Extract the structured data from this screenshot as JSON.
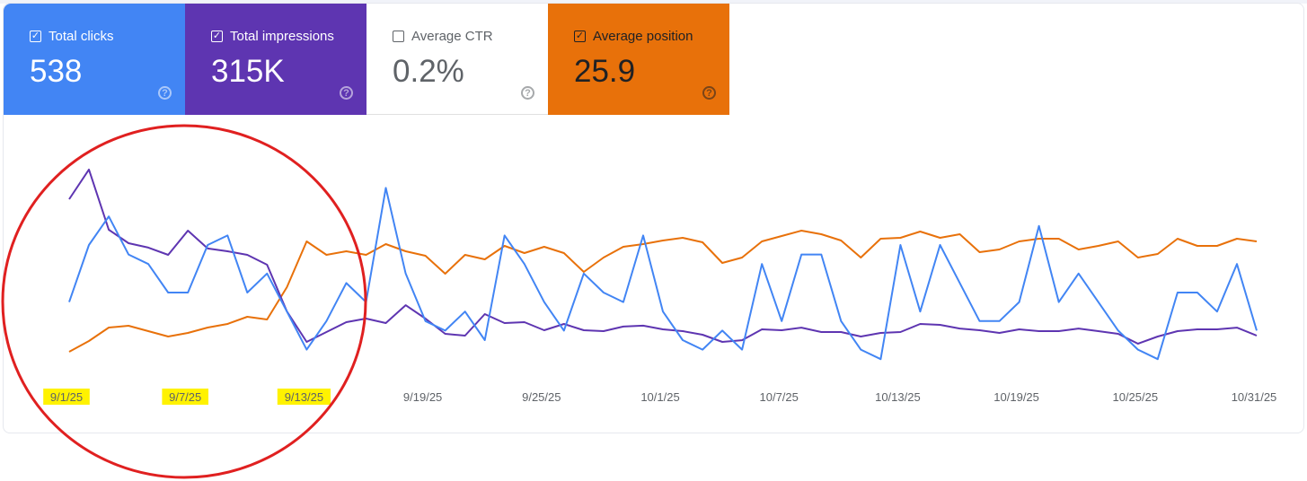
{
  "cards": [
    {
      "label": "Total clicks",
      "value": "538",
      "checked": true,
      "bg": "#4285f4",
      "fg": "#ffffff"
    },
    {
      "label": "Total impressions",
      "value": "315K",
      "checked": true,
      "bg": "#5e35b1",
      "fg": "#ffffff"
    },
    {
      "label": "Average CTR",
      "value": "0.2%",
      "checked": false,
      "bg": "#ffffff",
      "fg": "#5f6368"
    },
    {
      "label": "Average position",
      "value": "25.9",
      "checked": true,
      "bg": "#e8710a",
      "fg": "#202124"
    }
  ],
  "help_icon": "question-circle-icon",
  "annotation": {
    "type": "red-circle",
    "color": "#e02020",
    "highlight_color": "#fff200"
  },
  "chart_data": {
    "type": "line",
    "x_start": "9/1/25",
    "x_end": "10/31/25",
    "days": 61,
    "x_ticks": [
      {
        "label": "9/1/25",
        "day": 0,
        "highlighted": true
      },
      {
        "label": "9/7/25",
        "day": 6,
        "highlighted": true
      },
      {
        "label": "9/13/25",
        "day": 12,
        "highlighted": true
      },
      {
        "label": "9/19/25",
        "day": 18,
        "highlighted": false
      },
      {
        "label": "9/25/25",
        "day": 24,
        "highlighted": false
      },
      {
        "label": "10/1/25",
        "day": 30,
        "highlighted": false
      },
      {
        "label": "10/7/25",
        "day": 36,
        "highlighted": false
      },
      {
        "label": "10/13/25",
        "day": 42,
        "highlighted": false
      },
      {
        "label": "10/19/25",
        "day": 48,
        "highlighted": false
      },
      {
        "label": "10/25/25",
        "day": 54,
        "highlighted": false
      },
      {
        "label": "10/31/25",
        "day": 60,
        "highlighted": false
      }
    ],
    "series": [
      {
        "name": "Clicks",
        "color": "#4285f4",
        "values": [
          8,
          14,
          17,
          13,
          12,
          9,
          9,
          14,
          15,
          9,
          11,
          7,
          3,
          6,
          10,
          8,
          20,
          11,
          6,
          5,
          7,
          4,
          15,
          12,
          8,
          5,
          11,
          9,
          8,
          15,
          7,
          4,
          3,
          5,
          3,
          12,
          6,
          13,
          13,
          6,
          3,
          2,
          14,
          7,
          14,
          10,
          6,
          6,
          8,
          16,
          8,
          11,
          8,
          5,
          3,
          2,
          9,
          9,
          7,
          12,
          5
        ]
      },
      {
        "name": "Impressions",
        "color": "#5e35b1",
        "values": [
          14090,
          16430,
          11680,
          10620,
          10270,
          9700,
          11610,
          10200,
          9980,
          9700,
          8920,
          5240,
          2830,
          3610,
          4390,
          4670,
          4320,
          5730,
          4670,
          3470,
          3330,
          5030,
          4320,
          4390,
          3750,
          4250,
          3750,
          3680,
          4040,
          4110,
          3820,
          3680,
          3400,
          2830,
          2970,
          3820,
          3750,
          3960,
          3610,
          3610,
          3260,
          3540,
          3610,
          4250,
          4180,
          3890,
          3750,
          3540,
          3820,
          3680,
          3680,
          3890,
          3680,
          3470,
          2690,
          3260,
          3680,
          3820,
          3820,
          3960,
          3330
        ]
      },
      {
        "name": "Position",
        "color": "#e8710a",
        "inverted": true,
        "values": [
          46.4,
          44.0,
          41.0,
          40.6,
          41.8,
          43.0,
          42.2,
          41.0,
          40.2,
          38.6,
          39.2,
          32.0,
          21.8,
          24.8,
          24.0,
          24.8,
          22.4,
          24.0,
          25.0,
          29.0,
          24.8,
          25.8,
          22.8,
          24.4,
          23.0,
          24.4,
          28.6,
          25.4,
          23.0,
          22.4,
          21.6,
          21.0,
          22.0,
          26.6,
          25.4,
          21.8,
          20.6,
          19.4,
          20.2,
          21.6,
          25.4,
          21.2,
          21.0,
          19.6,
          21.0,
          20.2,
          24.2,
          23.6,
          21.8,
          21.2,
          21.2,
          23.6,
          22.8,
          21.8,
          25.4,
          24.6,
          21.2,
          22.8,
          22.8,
          21.2,
          21.8
        ]
      }
    ],
    "grid": false
  }
}
